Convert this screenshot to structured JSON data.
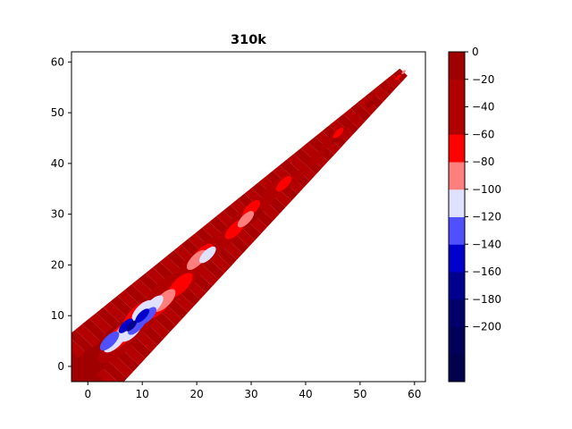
{
  "chart_data": [
    {
      "type": "heatmap",
      "subtype": "filled-contour",
      "title": "310k",
      "xlabel": "",
      "ylabel": "",
      "xlim": [
        -3,
        62
      ],
      "ylim": [
        -3,
        62
      ],
      "xticks": [
        0,
        10,
        20,
        30,
        40,
        50,
        60
      ],
      "yticks": [
        0,
        10,
        20,
        30,
        40,
        50,
        60
      ],
      "grid": false,
      "band": {
        "description_values": "diagonal band along x = y",
        "centerline": [
          [
            0,
            0
          ],
          [
            58,
            58
          ]
        ],
        "half_width_at_start": 7,
        "half_width_at_end": 1,
        "base_block": {
          "x": [
            -3,
            3
          ],
          "y": [
            -3,
            3
          ]
        }
      },
      "regions": [
        {
          "level_range": [
            -20,
            0
          ],
          "points": [
            [
              0,
              0
            ],
            [
              5,
              5
            ],
            [
              15,
              15
            ],
            [
              30,
              30
            ],
            [
              45,
              45
            ],
            [
              52,
              52
            ]
          ]
        },
        {
          "level_range": [
            -40,
            -20
          ],
          "points": [
            [
              6,
              5
            ],
            [
              10,
              9
            ],
            [
              14,
              15
            ],
            [
              18,
              17
            ],
            [
              22,
              23
            ],
            [
              26,
              26
            ],
            [
              34,
              35
            ],
            [
              42,
              41
            ],
            [
              47,
              46
            ],
            [
              52,
              53
            ],
            [
              55,
              55
            ]
          ]
        },
        {
          "level_range": [
            -60,
            -40
          ],
          "points": [
            [
              5,
              4
            ],
            [
              8,
              8
            ],
            [
              12,
              12
            ],
            [
              15,
              14
            ],
            [
              19,
              20
            ],
            [
              24,
              24
            ],
            [
              28,
              29
            ],
            [
              33,
              33
            ],
            [
              38,
              37
            ],
            [
              44,
              44
            ],
            [
              49,
              49
            ],
            [
              54,
              54
            ],
            [
              56,
              56
            ]
          ]
        },
        {
          "level_range": [
            -80,
            -60
          ],
          "points": [
            [
              6,
              6
            ],
            [
              9,
              10
            ],
            [
              13,
              12
            ],
            [
              17,
              16
            ],
            [
              21,
              22
            ],
            [
              27,
              27
            ],
            [
              30,
              31
            ],
            [
              36,
              36
            ],
            [
              46,
              46
            ],
            [
              57,
              57
            ]
          ]
        },
        {
          "level_range": [
            -100,
            -80
          ],
          "points": [
            [
              7,
              7
            ],
            [
              11,
              11
            ],
            [
              14,
              13
            ],
            [
              20,
              21
            ],
            [
              29,
              29
            ],
            [
              58,
              58
            ]
          ]
        },
        {
          "level_range": [
            -120,
            -100
          ],
          "points": [
            [
              5,
              5
            ],
            [
              8,
              7
            ],
            [
              10,
              11
            ],
            [
              12,
              12
            ],
            [
              22,
              22
            ]
          ]
        },
        {
          "level_range": [
            -140,
            -120
          ],
          "points": [
            [
              4,
              5
            ],
            [
              9,
              8
            ],
            [
              11,
              10
            ]
          ]
        },
        {
          "level_range": [
            -160,
            -140
          ],
          "points": [
            [
              7,
              8
            ],
            [
              10,
              10
            ]
          ]
        },
        {
          "level_range": [
            -180,
            -160
          ],
          "points": [
            [
              8,
              8
            ]
          ]
        }
      ],
      "colorbar": {
        "levels": [
          -240,
          -220,
          -200,
          -180,
          -160,
          -140,
          -120,
          -100,
          -80,
          -60,
          -40,
          -20,
          0
        ],
        "tick_values": [
          0,
          -20,
          -40,
          -60,
          -80,
          -100,
          -120,
          -140,
          -160,
          -180,
          -200
        ],
        "tick_labels": [
          "0",
          "−20",
          "−40",
          "−60",
          "−80",
          "−100",
          "−120",
          "−140",
          "−160",
          "−180",
          "−200"
        ],
        "colors": [
          "#00004c",
          "#000068",
          "#00008f",
          "#0000cc",
          "#5050ff",
          "#e0e0ff",
          "#ff7f7f",
          "#ff0000",
          "#b00000",
          "#9a0000"
        ],
        "color_bands": [
          [
            -240,
            -220
          ],
          [
            -220,
            -200
          ],
          [
            -200,
            -180
          ],
          [
            -180,
            -160
          ],
          [
            -160,
            -140
          ],
          [
            -140,
            -120
          ],
          [
            -120,
            -100
          ],
          [
            -100,
            -80
          ],
          [
            -80,
            -60
          ],
          [
            -60,
            -40
          ],
          [
            -40,
            -20
          ],
          [
            -20,
            0
          ]
        ],
        "band_colors": [
          "#00004c",
          "#00005a",
          "#000068",
          "#00008f",
          "#0000cc",
          "#5050ff",
          "#e0e0ff",
          "#ff7f7f",
          "#ff0000",
          "#b00000",
          "#b00000",
          "#a00000"
        ]
      }
    }
  ]
}
